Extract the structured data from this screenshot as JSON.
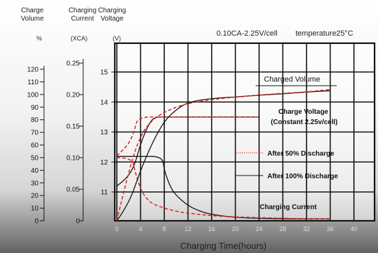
{
  "chart_data": {
    "type": "line",
    "subtitle": "0.10CA-2.25V/cell",
    "temperature_label": "temperature25°C",
    "xlabel": "Charging Time(hours)",
    "xticks": [
      "0",
      "4",
      "8",
      "12",
      "16",
      "20",
      "24",
      "28",
      "32",
      "36",
      "40"
    ],
    "xlim": [
      0,
      44
    ],
    "grid": true,
    "axes": [
      {
        "name": "Charge Volume",
        "header_line1": "Charge",
        "header_line2": "Volume",
        "unit": "%",
        "ticks": [
          "0",
          "10",
          "20",
          "30",
          "40",
          "50",
          "60",
          "70",
          "80",
          "90",
          "100",
          "110",
          "120"
        ],
        "range": [
          0,
          120
        ]
      },
      {
        "name": "Charging Current",
        "header_line1": "Charging",
        "header_line2": "Current",
        "unit": "(XCA)",
        "ticks": [
          "0",
          "0.05",
          "0.10",
          "0.15",
          "0.20",
          "0.25"
        ],
        "range": [
          0,
          0.25
        ]
      },
      {
        "name": "Charging Voltage",
        "header_line1": "Charging",
        "header_line2": "Voltage",
        "unit": "(V)",
        "ticks": [
          "11",
          "12",
          "13",
          "14",
          "15"
        ],
        "range": [
          10,
          16
        ]
      }
    ],
    "annotations": {
      "charged_volume": "Charged Volume",
      "charge_voltage_line1": "Charge Voltage",
      "charge_voltage_line2": "(Constant 2.25v/cell)",
      "charging_current": "Charging Current"
    },
    "legend": [
      {
        "label": "After 50% Discharge",
        "style": "dashed",
        "color": "#e0201c"
      },
      {
        "label": "After 100% Discharge",
        "style": "solid",
        "color": "#111111"
      }
    ],
    "series": [
      {
        "name": "After 100% Discharge",
        "quantity": "Charging Voltage",
        "axis": 2,
        "style": "solid",
        "x": [
          0,
          1,
          2,
          3,
          4,
          5,
          6,
          7,
          8,
          10,
          12,
          16,
          20,
          24
        ],
        "y": [
          11.2,
          11.35,
          11.55,
          11.9,
          12.6,
          13.1,
          13.45,
          13.5,
          13.5,
          13.5,
          13.5,
          13.5,
          13.5,
          13.5
        ]
      },
      {
        "name": "After 50% Discharge",
        "quantity": "Charging Voltage",
        "axis": 2,
        "style": "dashed",
        "x": [
          0,
          1,
          2,
          3,
          3.5,
          8,
          12,
          16,
          20,
          24
        ],
        "y": [
          12.2,
          12.4,
          12.6,
          13.05,
          13.5,
          13.5,
          13.5,
          13.5,
          13.5,
          13.5
        ]
      },
      {
        "name": "After 100% Discharge",
        "quantity": "Charging Current",
        "axis": 1,
        "style": "solid",
        "x": [
          0,
          4,
          7.7,
          8,
          9,
          10,
          12,
          14,
          16,
          20,
          24,
          28,
          32,
          36
        ],
        "y": [
          0.102,
          0.102,
          0.102,
          0.08,
          0.054,
          0.04,
          0.024,
          0.015,
          0.01,
          0.005,
          0.004,
          0.003,
          0.003,
          0.003
        ]
      },
      {
        "name": "After 50% Discharge",
        "quantity": "Charging Current",
        "axis": 1,
        "style": "dashed",
        "x": [
          0,
          2.6,
          3,
          4,
          5,
          6,
          8,
          10,
          12,
          16,
          20,
          24,
          28,
          32,
          36
        ],
        "y": [
          0.1,
          0.1,
          0.08,
          0.05,
          0.035,
          0.027,
          0.02,
          0.015,
          0.012,
          0.008,
          0.006,
          0.005,
          0.004,
          0.003,
          0.003
        ]
      },
      {
        "name": "After 100% Discharge",
        "quantity": "Charged Volume",
        "axis": 0,
        "style": "solid",
        "x": [
          0,
          2,
          4,
          6,
          8,
          10,
          12,
          16,
          20,
          24,
          28,
          32,
          36
        ],
        "y": [
          0,
          13,
          40,
          62,
          79,
          88,
          94,
          97,
          98,
          99.5,
          100.5,
          102,
          103
        ]
      },
      {
        "name": "After 50% Discharge",
        "quantity": "Charged Volume",
        "axis": 0,
        "style": "dashed",
        "x": [
          0,
          2,
          4,
          6,
          8,
          10,
          12,
          16,
          20,
          24,
          28,
          32,
          36
        ],
        "y": [
          0,
          40,
          68,
          80,
          86,
          90,
          93,
          96,
          98,
          99.5,
          101,
          102,
          104
        ]
      }
    ]
  }
}
